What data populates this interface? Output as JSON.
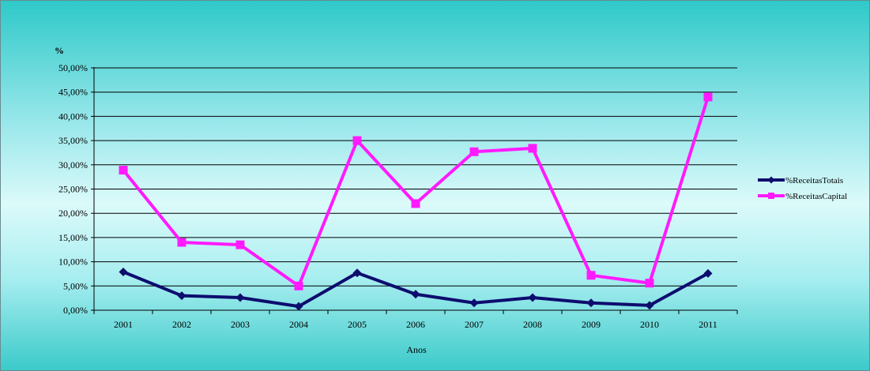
{
  "chart_data": {
    "type": "line",
    "title": "",
    "ylabel": "%",
    "xlabel": "Anos",
    "categories": [
      "2001",
      "2002",
      "2003",
      "2004",
      "2005",
      "2006",
      "2007",
      "2008",
      "2009",
      "2010",
      "2011"
    ],
    "yticks": [
      "0,00%",
      "5,00%",
      "10,00%",
      "15,00%",
      "20,00%",
      "25,00%",
      "30,00%",
      "35,00%",
      "40,00%",
      "45,00%",
      "50,00%"
    ],
    "ylim": [
      0,
      50
    ],
    "grid": true,
    "legend_position": "right",
    "series": [
      {
        "name": "%ReceitasTotais",
        "color": "#0d0d6e",
        "marker": "diamond",
        "values": [
          7.9,
          3.0,
          2.6,
          0.8,
          7.7,
          3.3,
          1.5,
          2.6,
          1.5,
          1.0,
          7.6
        ]
      },
      {
        "name": "%ReceitasCapital",
        "color": "#ff1aff",
        "marker": "square",
        "values": [
          28.9,
          14.0,
          13.5,
          5.0,
          35.0,
          22.0,
          32.7,
          33.4,
          7.2,
          5.6,
          44.0
        ]
      }
    ]
  }
}
